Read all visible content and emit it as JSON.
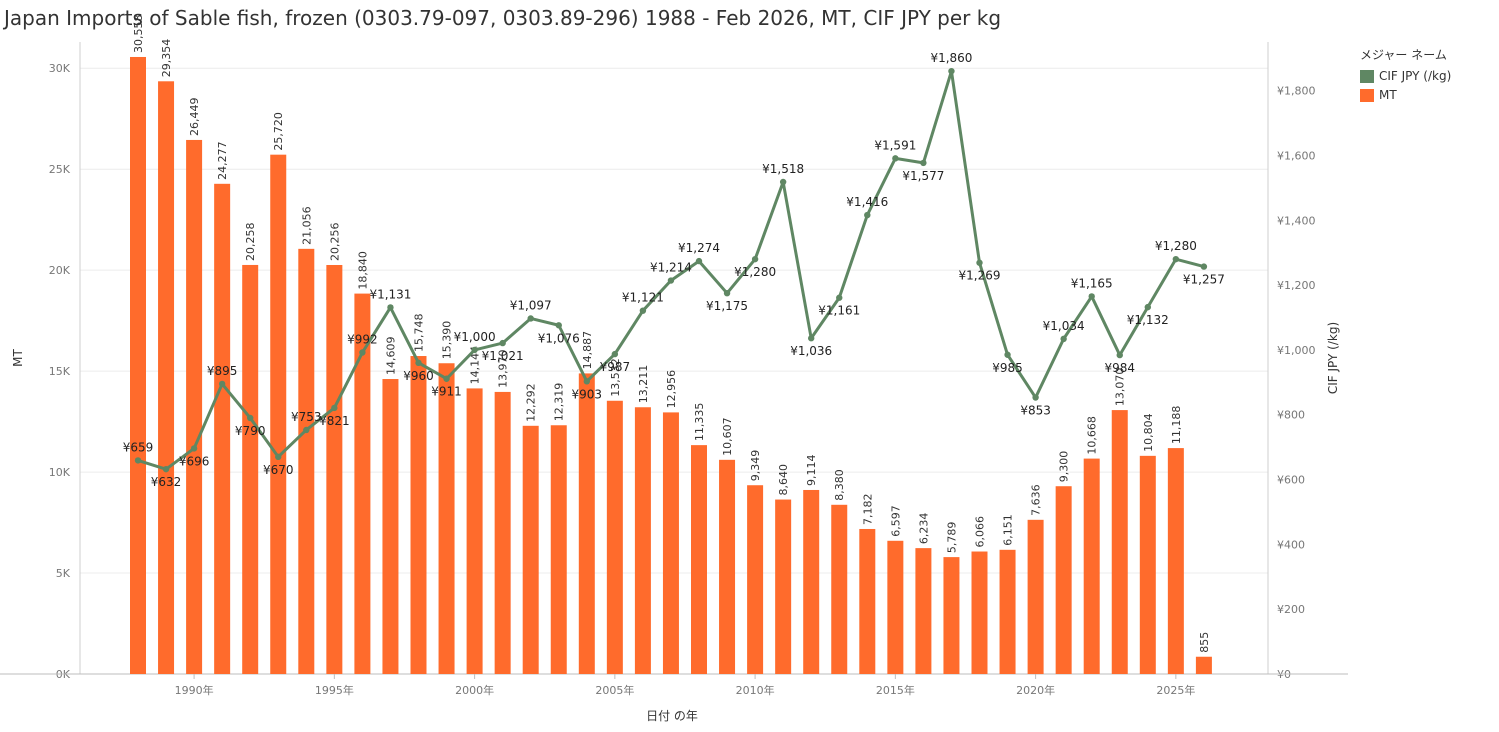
{
  "title": "Japan Imports of Sable fish, frozen (0303.79-097, 0303.89-296) 1988 - Feb 2026, MT, CIF JPY per kg",
  "legend": {
    "title": "メジャー ネーム",
    "items": [
      {
        "label": "CIF JPY (/kg)",
        "color": "#5f8763"
      },
      {
        "label": "MT",
        "color": "#ff6b2c"
      }
    ]
  },
  "chart_data": {
    "type": "bar",
    "x_axis": {
      "label": "日付 の年",
      "tick_labels": [
        "1990年",
        "1995年",
        "2000年",
        "2005年",
        "2010年",
        "2015年",
        "2020年",
        "2025年"
      ],
      "tick_years": [
        1990,
        1995,
        2000,
        2005,
        2010,
        2015,
        2020,
        2025
      ]
    },
    "y_left": {
      "label": "MT",
      "range": [
        0,
        31300
      ],
      "ticks": [
        0,
        5000,
        10000,
        15000,
        20000,
        25000,
        30000
      ],
      "tick_labels": [
        "0K",
        "5K",
        "10K",
        "15K",
        "20K",
        "25K",
        "30K"
      ]
    },
    "y_right": {
      "label": "CIF JPY (/kg)",
      "range": [
        0,
        1950
      ],
      "ticks": [
        0,
        200,
        400,
        600,
        800,
        1000,
        1200,
        1400,
        1600,
        1800
      ],
      "tick_labels": [
        "¥0",
        "¥200",
        "¥400",
        "¥600",
        "¥800",
        "¥1,000",
        "¥1,200",
        "¥1,400",
        "¥1,600",
        "¥1,800"
      ]
    },
    "gridlines": true,
    "legend_position": "top-right",
    "years": [
      1988,
      1989,
      1990,
      1991,
      1992,
      1993,
      1994,
      1995,
      1996,
      1997,
      1998,
      1999,
      2000,
      2001,
      2002,
      2003,
      2004,
      2005,
      2006,
      2007,
      2008,
      2009,
      2010,
      2011,
      2012,
      2013,
      2014,
      2015,
      2016,
      2017,
      2018,
      2019,
      2020,
      2021,
      2022,
      2023,
      2024,
      2025,
      2026
    ],
    "series": [
      {
        "name": "MT",
        "type": "bar",
        "axis": "left",
        "color": "#ff6b2c",
        "values": [
          30558,
          29354,
          26449,
          24277,
          20258,
          25720,
          21056,
          20256,
          18840,
          14609,
          15748,
          15390,
          14144,
          13970,
          12292,
          12319,
          14887,
          13532,
          13211,
          12956,
          11335,
          10607,
          9349,
          8640,
          9114,
          8380,
          7182,
          6597,
          6234,
          5789,
          6066,
          6151,
          7636,
          9300,
          10668,
          13070,
          10804,
          11188,
          855
        ],
        "labels": [
          "30,558",
          "29,354",
          "26,449",
          "24,277",
          "20,258",
          "25,720",
          "21,056",
          "20,256",
          "18,840",
          "14,609",
          "15,748",
          "15,390",
          "14,144",
          "13,970",
          "12,292",
          "12,319",
          "14,887",
          "13,532",
          "13,211",
          "12,956",
          "11,335",
          "10,607",
          "9,349",
          "8,640",
          "9,114",
          "8,380",
          "7,182",
          "6,597",
          "6,234",
          "5,789",
          "6,066",
          "6,151",
          "7,636",
          "9,300",
          "10,668",
          "13,070",
          "10,804",
          "11,188",
          "855"
        ]
      },
      {
        "name": "CIF JPY (/kg)",
        "type": "line",
        "axis": "right",
        "color": "#5f8763",
        "values": [
          659,
          632,
          696,
          895,
          790,
          670,
          753,
          821,
          992,
          1131,
          960,
          911,
          1000,
          1021,
          1097,
          1076,
          903,
          987,
          1121,
          1214,
          1274,
          1175,
          1280,
          1518,
          1036,
          1161,
          1416,
          1591,
          1577,
          1860,
          1269,
          985,
          853,
          1034,
          1165,
          984,
          1132,
          1280,
          1257
        ],
        "labels": [
          "¥659",
          "¥632",
          "¥696",
          "¥895",
          "¥790",
          "¥670",
          "¥753",
          "¥821",
          "¥992",
          "¥1,131",
          "¥960",
          "¥911",
          "¥1,000",
          "¥1,021",
          "¥1,097",
          "¥1,076",
          "¥903",
          "¥987",
          "¥1,121",
          "¥1,214",
          "¥1,274",
          "¥1,175",
          "¥1,280",
          "¥1,518",
          "¥1,036",
          "¥1,161",
          "¥1,416",
          "¥1,591",
          "¥1,577",
          "¥1,860",
          "¥1,269",
          "¥985",
          "¥853",
          "¥1,034",
          "¥1,165",
          "¥984",
          "¥1,132",
          "¥1,280",
          "¥1,257"
        ]
      }
    ]
  }
}
